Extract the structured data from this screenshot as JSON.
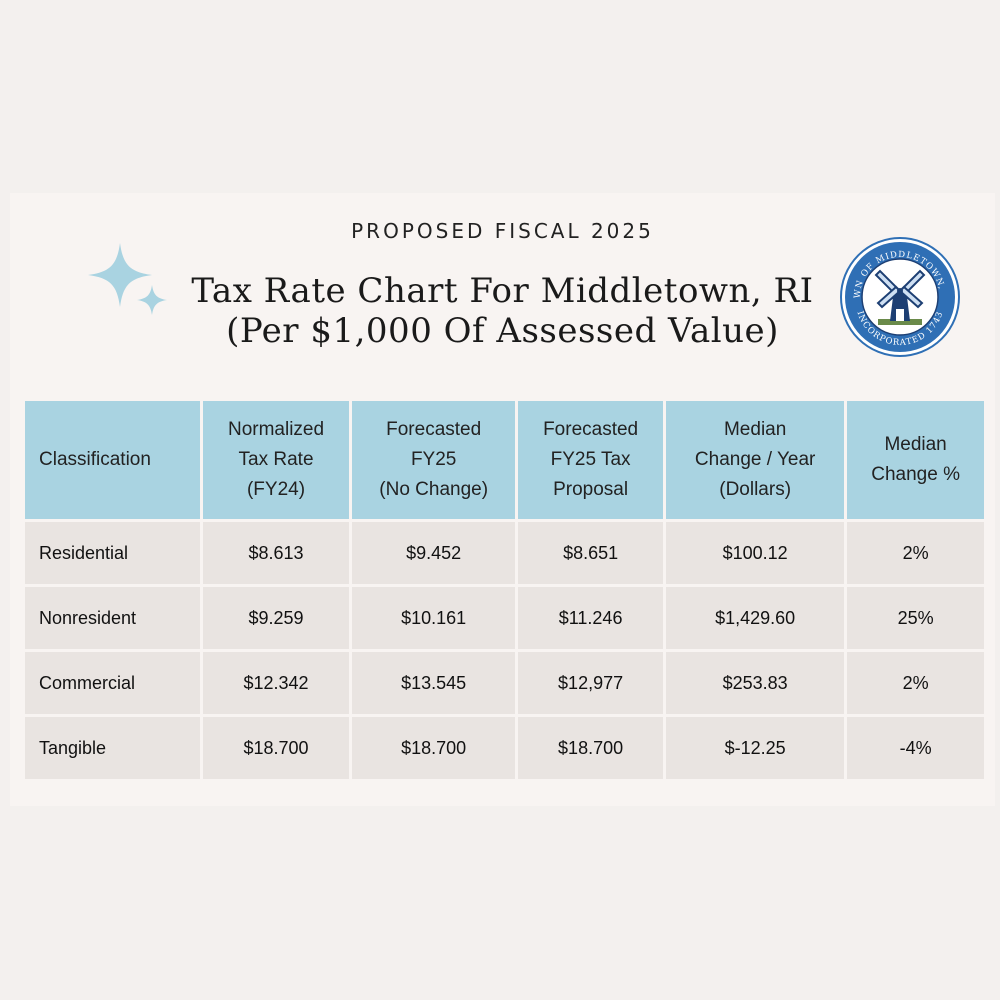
{
  "eyebrow": "PROPOSED FISCAL 2025",
  "title": {
    "line1": "Tax Rate Chart For Middletown, RI",
    "line2": "(Per $1,000 Of Assessed Value)"
  },
  "seal": {
    "top_text": "TOWN OF MIDDLETOWN, R.I.",
    "bottom_text": "INCORPORATED 1743",
    "icon": "windmill-icon"
  },
  "colors": {
    "header": "#a9d3e1",
    "row": "#e9e4e1",
    "sparkle": "#a9d3e1",
    "seal": "#2f6fb5"
  },
  "table": {
    "headers": [
      [
        "Classification"
      ],
      [
        "Normalized",
        "Tax Rate",
        "(FY24)"
      ],
      [
        "Forecasted",
        "FY25",
        "(No Change)"
      ],
      [
        "Forecasted",
        "FY25 Tax",
        "Proposal"
      ],
      [
        "Median",
        "Change / Year",
        "(Dollars)"
      ],
      [
        "Median",
        "Change %"
      ]
    ],
    "rows": [
      [
        "Residential",
        "$8.613",
        "$9.452",
        "$8.651",
        "$100.12",
        "2%"
      ],
      [
        "Nonresident",
        "$9.259",
        "$10.161",
        "$11.246",
        "$1,429.60",
        "25%"
      ],
      [
        "Commercial",
        "$12.342",
        "$13.545",
        "$12,977",
        "$253.83",
        "2%"
      ],
      [
        "Tangible",
        "$18.700",
        "$18.700",
        "$18.700",
        "$-12.25",
        "-4%"
      ]
    ]
  }
}
